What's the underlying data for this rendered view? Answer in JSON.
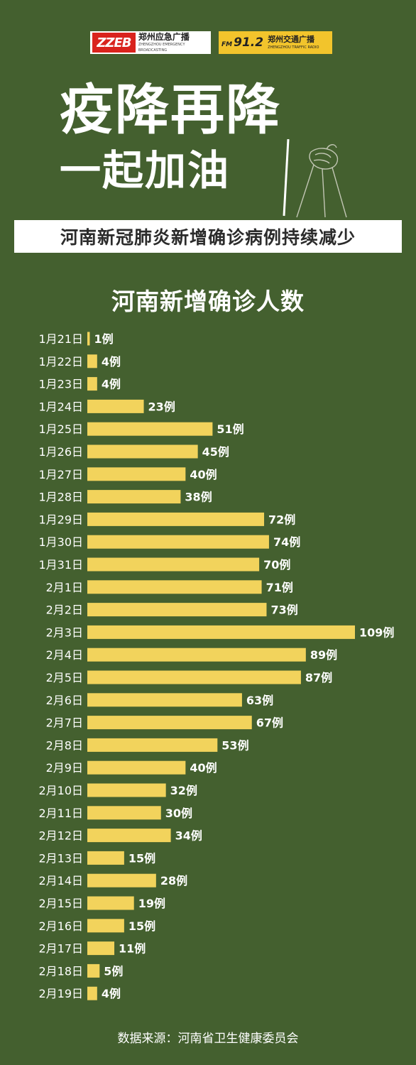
{
  "logos": {
    "left_mark": "ZZEB",
    "left_cn": "郑州应急广播",
    "left_en": "ZHENGZHOU EMERGENCY BROADCASTING",
    "right_fm_prefix": "FM",
    "right_fm_number": "91.2",
    "right_cn": "郑州交通广播",
    "right_en": "ZHENGZHOU TRAFFIC RADIO",
    "left_color": "#d9231d",
    "right_color": "#f2c42c"
  },
  "headline": {
    "line1": "疫降再降",
    "line2": "一起加油"
  },
  "subtitle": "河南新冠肺炎新增确诊病例持续减少",
  "colors": {
    "background": "#44602f",
    "bar": "#f2d35c"
  },
  "chart_data": {
    "type": "bar",
    "orientation": "horizontal",
    "title": "河南新增确诊人数",
    "value_suffix": "例",
    "categories": [
      "1月21日",
      "1月22日",
      "1月23日",
      "1月24日",
      "1月25日",
      "1月26日",
      "1月27日",
      "1月28日",
      "1月29日",
      "1月30日",
      "1月31日",
      "2月1日",
      "2月2日",
      "2月3日",
      "2月4日",
      "2月5日",
      "2月6日",
      "2月7日",
      "2月8日",
      "2月9日",
      "2月10日",
      "2月11日",
      "2月12日",
      "2月13日",
      "2月14日",
      "2月15日",
      "2月16日",
      "2月17日",
      "2月18日",
      "2月19日"
    ],
    "values": [
      1,
      4,
      4,
      23,
      51,
      45,
      40,
      38,
      72,
      74,
      70,
      71,
      73,
      109,
      89,
      87,
      63,
      67,
      53,
      40,
      32,
      30,
      34,
      15,
      28,
      19,
      15,
      11,
      5,
      4
    ],
    "xlim": [
      0,
      109
    ],
    "grid": false,
    "legend": "none"
  },
  "source": "数据来源：河南省卫生健康委员会"
}
